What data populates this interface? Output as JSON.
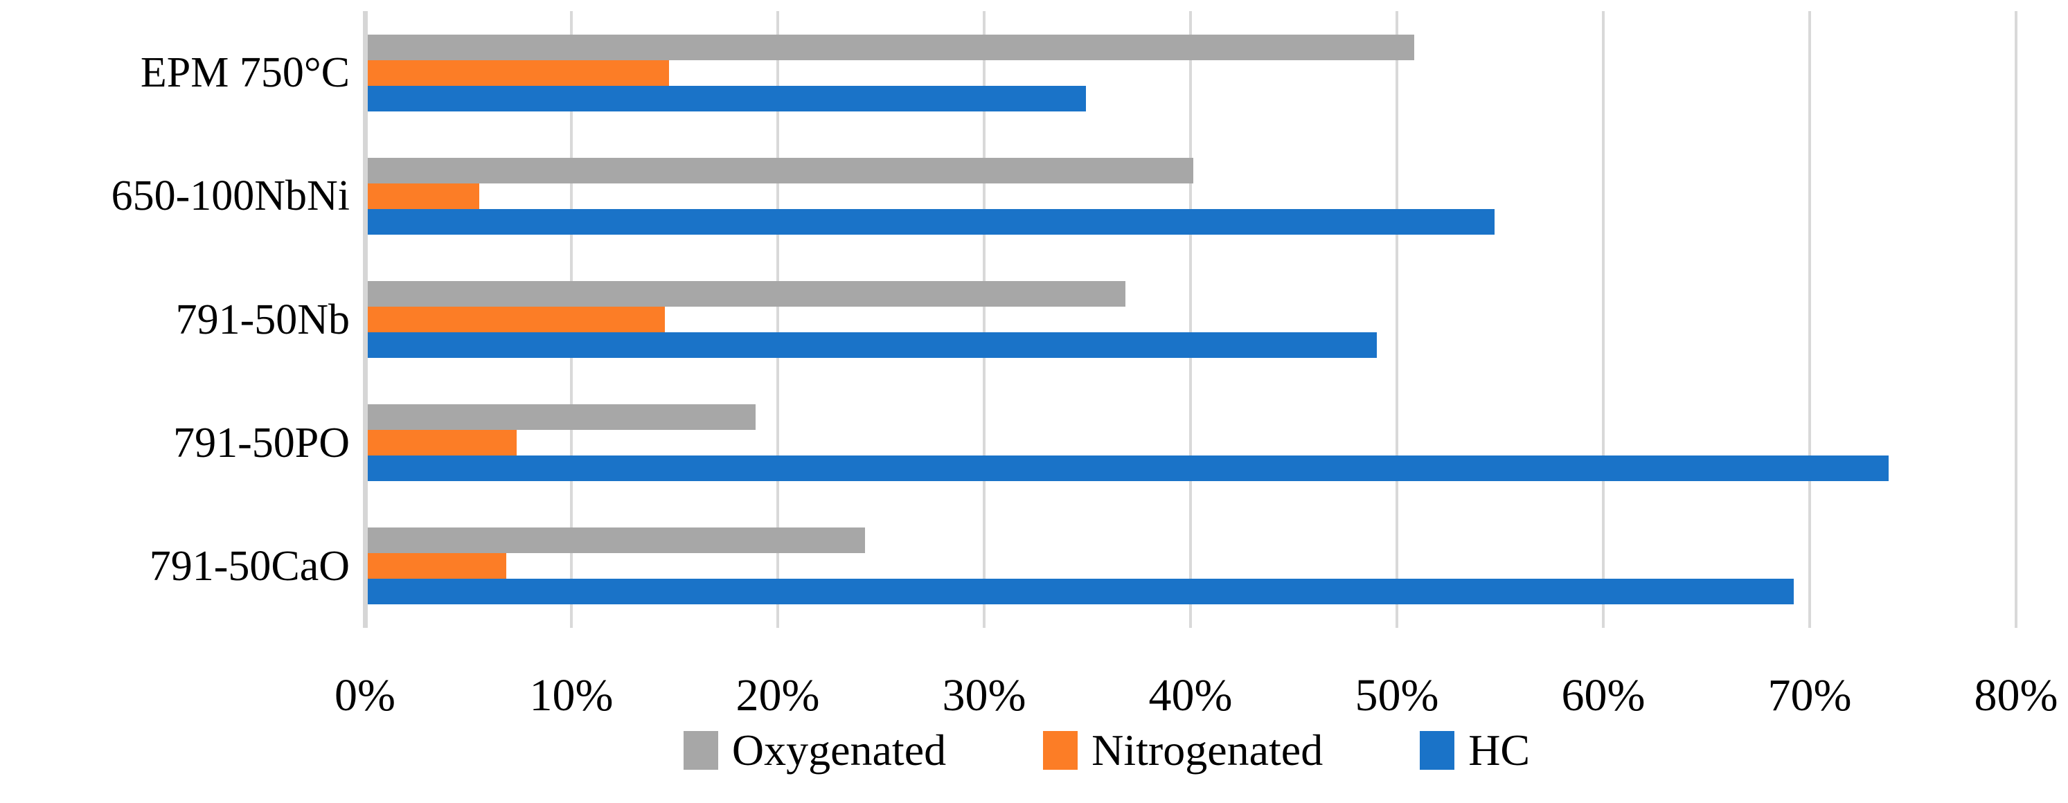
{
  "chart_data": {
    "type": "bar",
    "orientation": "horizontal",
    "title": "",
    "xlabel": "",
    "ylabel": "",
    "categories": [
      "EPM 750°C",
      "650-100NbNi",
      "791-50Nb",
      "791-50PO",
      "791-50CaO"
    ],
    "series": [
      {
        "name": "Oxygenated",
        "color": "#A7A7A7",
        "values": [
          50.7,
          40.0,
          36.7,
          18.8,
          24.1
        ]
      },
      {
        "name": "Nitrogenated",
        "color": "#FC7D26",
        "values": [
          14.6,
          5.4,
          14.4,
          7.2,
          6.7
        ]
      },
      {
        "name": "HC",
        "color": "#1A73C8",
        "values": [
          34.8,
          54.6,
          48.9,
          73.7,
          69.1
        ]
      }
    ],
    "x_axis": {
      "min": 0,
      "max": 80,
      "step": 10,
      "tick_labels": [
        "0%",
        "10%",
        "20%",
        "30%",
        "40%",
        "50%",
        "60%",
        "70%",
        "80%"
      ],
      "unit": "%"
    },
    "legend": {
      "position": "bottom",
      "entries": [
        "Oxygenated",
        "Nitrogenated",
        "HC"
      ]
    },
    "grid": true,
    "gridline_color": "#D9D9D9",
    "axis_line_color": "#D6D6D6",
    "background_color": "#FFFFFF",
    "text_color": "#000000"
  }
}
